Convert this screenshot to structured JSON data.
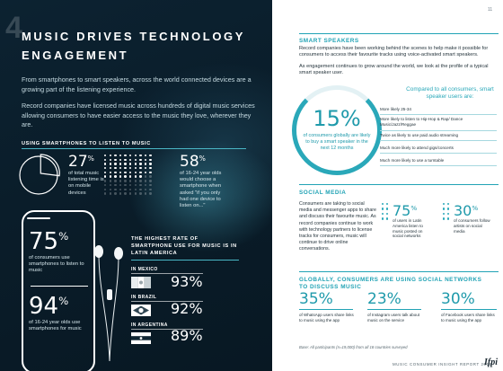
{
  "left": {
    "section_number": "4",
    "title": "MUSIC DRIVES TECHNOLOGY ENGAGEMENT",
    "intro1": "From smartphones to smart speakers, across the world connected devices are a growing part of the listening experience.",
    "intro2": "Record companies have licensed music across hundreds of digital music services allowing consumers to have easier access to the music they love, wherever they are.",
    "smartphones_heading": "USING SMARTPHONES TO LISTEN TO MUSIC",
    "stat_27": {
      "value": "27",
      "unit": "%",
      "text": "of total music listening time is on mobile devices"
    },
    "stat_58": {
      "value": "58",
      "unit": "%",
      "text": "of 16-24 year olds would choose a smartphone when asked \"if you only had one device to listen on...\""
    },
    "stat_75": {
      "value": "75",
      "unit": "%",
      "text": "of consumers use smartphones to listen to music"
    },
    "stat_94": {
      "value": "94",
      "unit": "%",
      "text": "of 16-24 year olds use smartphones for music"
    },
    "latin_heading": "THE HIGHEST RATE OF SMARTPHONE USE FOR MUSIC IS IN LATIN AMERICA",
    "countries": [
      {
        "name": "IN MEXICO",
        "pct": "93%"
      },
      {
        "name": "IN BRAZIL",
        "pct": "92%"
      },
      {
        "name": "IN ARGENTINA",
        "pct": "89%"
      }
    ],
    "pie_share": 0.27,
    "dots_share": 0.58
  },
  "right": {
    "page_number": "11",
    "smart_heading": "SMART SPEAKERS",
    "smart_p1": "Record companies have been working behind the scenes to help make it possible for consumers to access their favourite tracks using voice-activated smart speakers.",
    "smart_p2": "As engagement continues to grow around the world, we look at the profile of a typical smart speaker user.",
    "c15_value": "15%",
    "c15_text": "of consumers globally are likely to buy a smart speaker in the next 12 months",
    "compare_heading": "Compared to all consumers, smart speaker users are:",
    "compare_rows": [
      "More likely 25-34",
      "More likely to listen to Hip-Hop & Rap/ Dance Music/Jazz/Reggae",
      "Twice as likely to use paid audio streaming",
      "Much more likely to attend gigs/concerts",
      "Much more likely to use a turntable"
    ],
    "social_heading": "SOCIAL MEDIA",
    "social_text": "Consumers are taking to social media and messenger apps to share and discuss their favourite music. As record companies continue to work with technology partners to license tracks for consumers, music will continue to drive online conversations.",
    "stat_75": {
      "value": "75",
      "unit": "%",
      "text": "of users in Latin America listen to music posted on social networks"
    },
    "stat_30": {
      "value": "30",
      "unit": "%",
      "text": "of consumers follow artists on social media"
    },
    "global_heading": "GLOBALLY, CONSUMERS ARE USING SOCIAL NETWORKS TO DISCUSS MUSIC",
    "social_stats": [
      {
        "value": "35%",
        "text": "of WhatsApp users share links to music using the app"
      },
      {
        "value": "23%",
        "text": "of Instagram users talk about music on the service"
      },
      {
        "value": "30%",
        "text": "of Facebook users share links to music using the app"
      }
    ],
    "base_note": "Base: All participants (n=19,000) from all 18 countries surveyed",
    "footer": "MUSIC CONSUMER INSIGHT REPORT 2018",
    "logo": "Ifpi"
  },
  "colors": {
    "accent": "#21a3b5",
    "dark_bg": "#0b1f2c"
  }
}
